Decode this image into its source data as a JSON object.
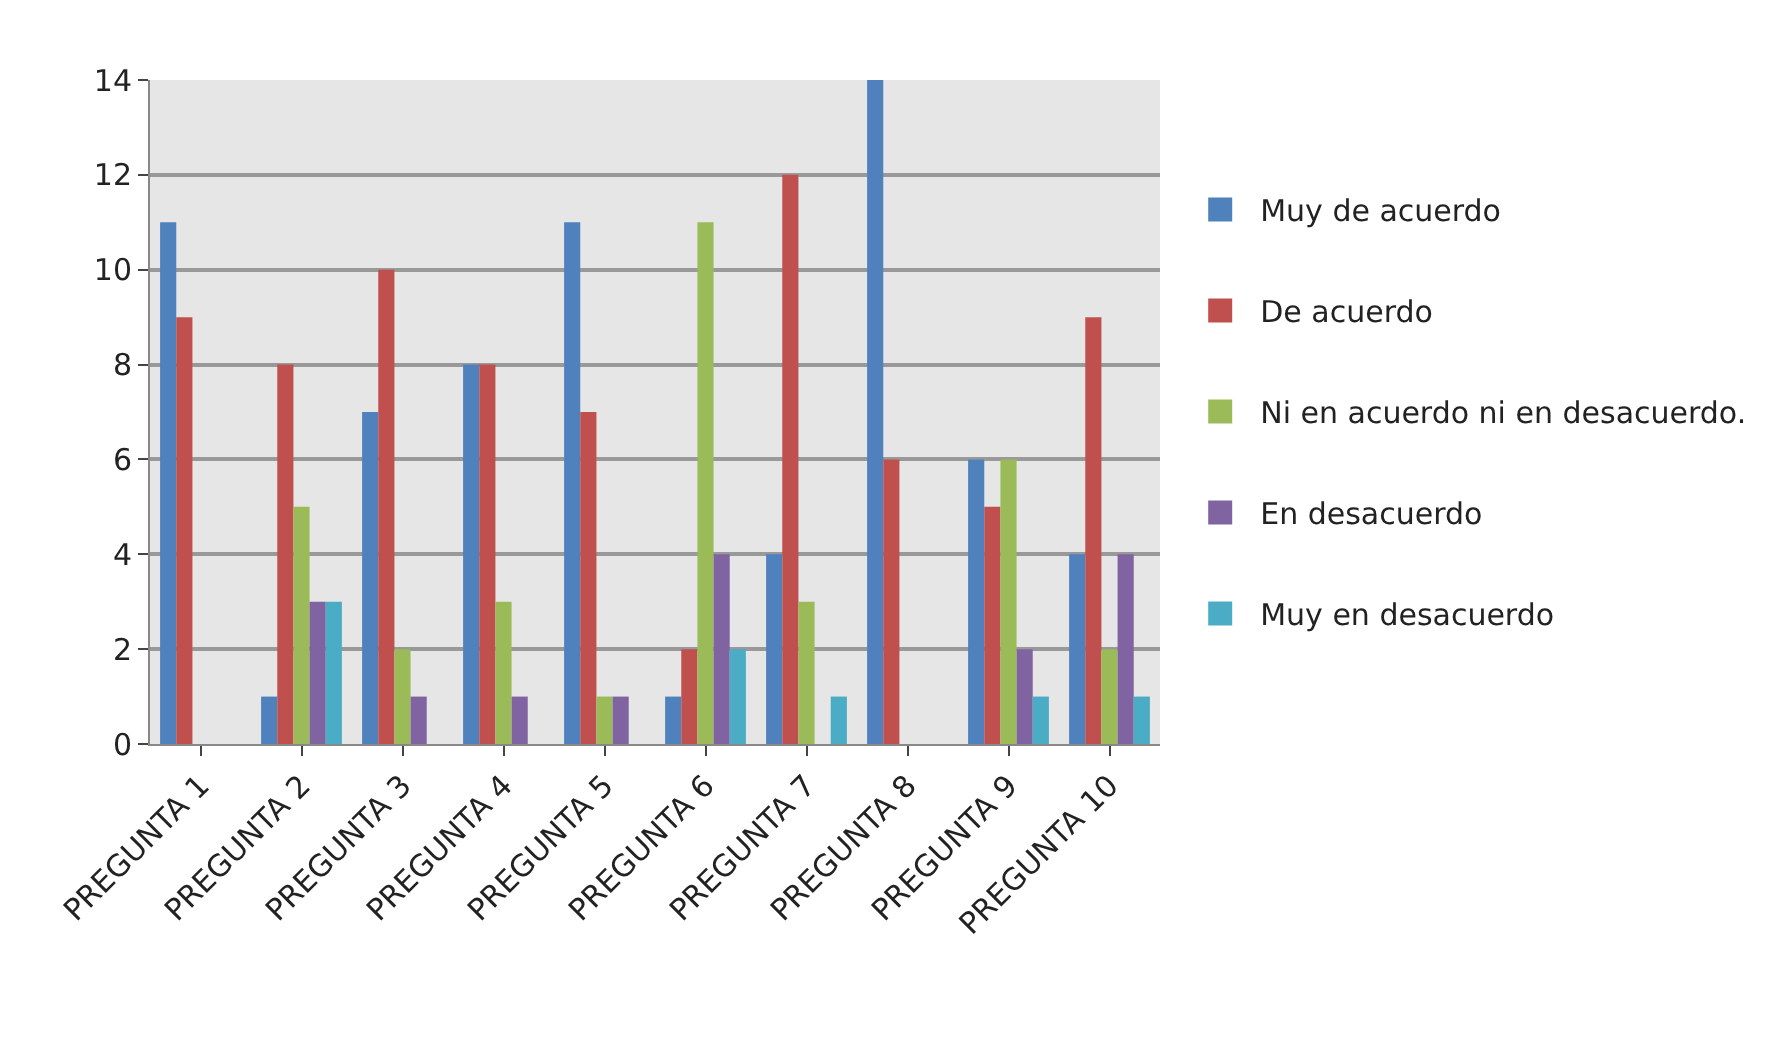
{
  "chart_data": {
    "type": "bar",
    "categories": [
      "PREGUNTA 1",
      "PREGUNTA 2",
      "PREGUNTA 3",
      "PREGUNTA 4",
      "PREGUNTA 5",
      "PREGUNTA 6",
      "PREGUNTA 7",
      "PREGUNTA 8",
      "PREGUNTA 9",
      "PREGUNTA 10"
    ],
    "series": [
      {
        "name": "Muy de acuerdo",
        "color": "#4f81bd",
        "values": [
          11,
          1,
          7,
          8,
          11,
          1,
          4,
          14,
          6,
          4
        ]
      },
      {
        "name": "De acuerdo",
        "color": "#c0504d",
        "values": [
          9,
          8,
          10,
          8,
          7,
          2,
          12,
          6,
          5,
          9
        ]
      },
      {
        "name": "Ni en acuerdo ni en desacuerdo.",
        "color": "#9bbb59",
        "values": [
          0,
          5,
          2,
          3,
          1,
          11,
          3,
          0,
          6,
          2
        ]
      },
      {
        "name": "En desacuerdo",
        "color": "#8064a2",
        "values": [
          0,
          3,
          1,
          1,
          1,
          4,
          0,
          0,
          2,
          4
        ]
      },
      {
        "name": "Muy en desacuerdo",
        "color": "#4bacc6",
        "values": [
          0,
          3,
          0,
          0,
          0,
          2,
          1,
          0,
          1,
          1
        ]
      }
    ],
    "ylim": [
      0,
      14
    ],
    "yticks": [
      0,
      2,
      4,
      6,
      8,
      10,
      12,
      14
    ],
    "grid": "y",
    "legend": "right"
  }
}
